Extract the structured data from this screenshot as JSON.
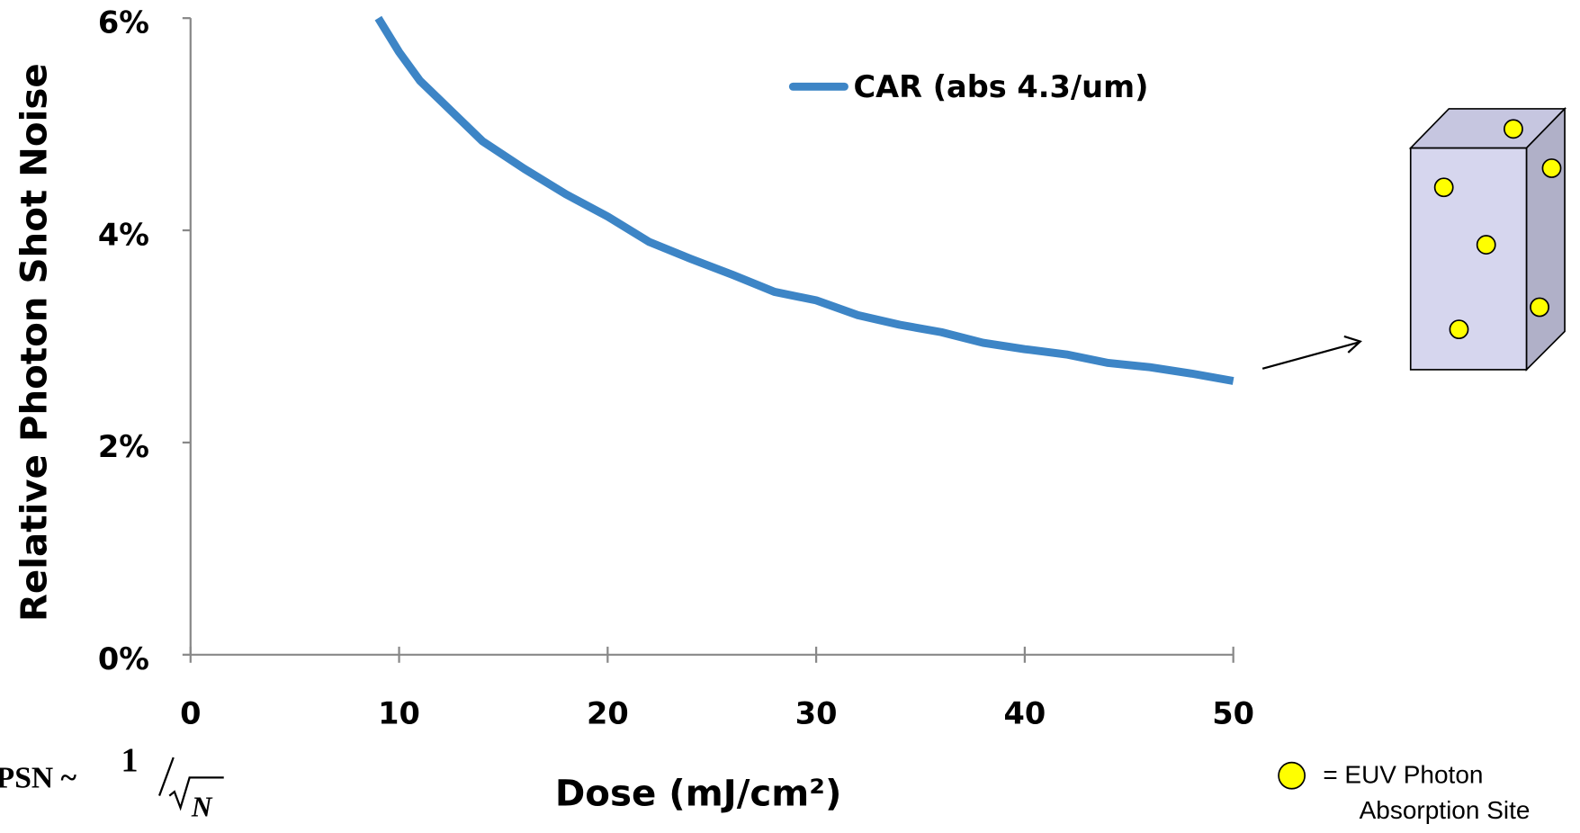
{
  "chart_data": {
    "type": "line",
    "x_label": "Dose (mJ/cm²)",
    "y_label": "Relative Photon Shot Noise",
    "x": [
      9,
      10,
      11,
      12,
      14,
      16,
      18,
      20,
      22,
      24,
      26,
      28,
      30,
      32,
      34,
      36,
      38,
      40,
      42,
      44,
      46,
      48,
      50
    ],
    "series": [
      {
        "name": "CAR (abs 4.3/um)",
        "color": "#3d85c6",
        "values": [
          6.0,
          5.68,
          5.41,
          5.22,
          4.84,
          4.58,
          4.34,
          4.13,
          3.89,
          3.73,
          3.58,
          3.42,
          3.34,
          3.2,
          3.11,
          3.04,
          2.94,
          2.88,
          2.83,
          2.75,
          2.71,
          2.65,
          2.58
        ]
      }
    ],
    "xlim": [
      0,
      50
    ],
    "xticks": [
      0,
      10,
      20,
      30,
      40,
      50
    ],
    "ylim": [
      0,
      6
    ],
    "yticks": [
      {
        "value": 0,
        "label": "0%"
      },
      {
        "value": 2,
        "label": "2%"
      },
      {
        "value": 4,
        "label": "4%"
      },
      {
        "value": 6,
        "label": "6%"
      }
    ],
    "grid": false,
    "legend_position": "top-right"
  },
  "formula": {
    "lhs": "PSN ~",
    "numerator": "1",
    "denominator": "N"
  },
  "diagram_note": {
    "line1": "= EUV Photon",
    "line2": "Absorption Site"
  }
}
